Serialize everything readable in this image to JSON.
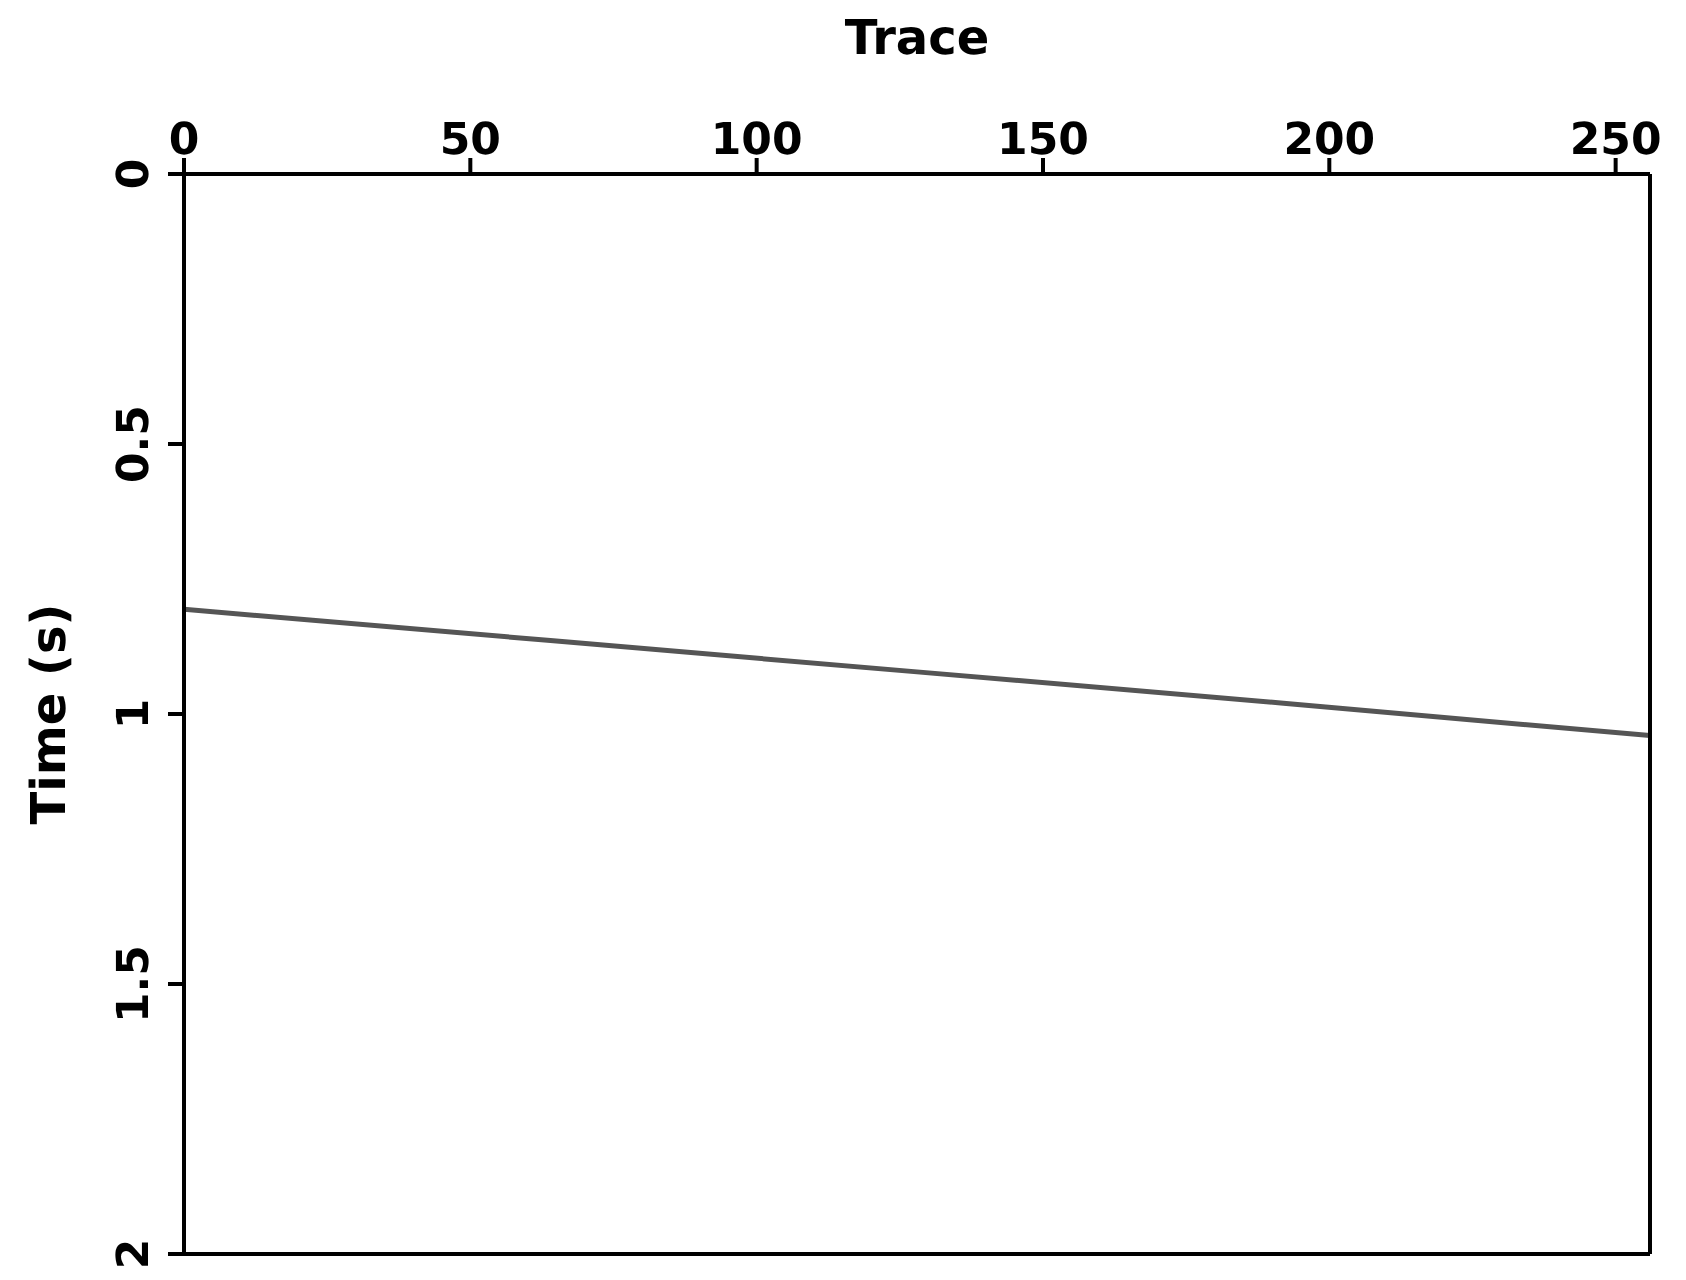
{
  "chart_data": {
    "type": "line",
    "xlabel": "Trace",
    "ylabel": "Time (s)",
    "x": [
      0,
      64,
      128,
      192,
      256
    ],
    "series": [
      {
        "color": "#555555",
        "values": [
          0.806,
          0.864,
          0.922,
          0.98,
          1.04
        ]
      }
    ],
    "xlim": [
      0,
      256
    ],
    "xticks": [
      0,
      50,
      100,
      150,
      200,
      250
    ],
    "ylim": [
      2,
      0
    ],
    "yticks": [
      0,
      0.5,
      1,
      1.5,
      2
    ],
    "marker": "none",
    "line_style": "solid"
  }
}
